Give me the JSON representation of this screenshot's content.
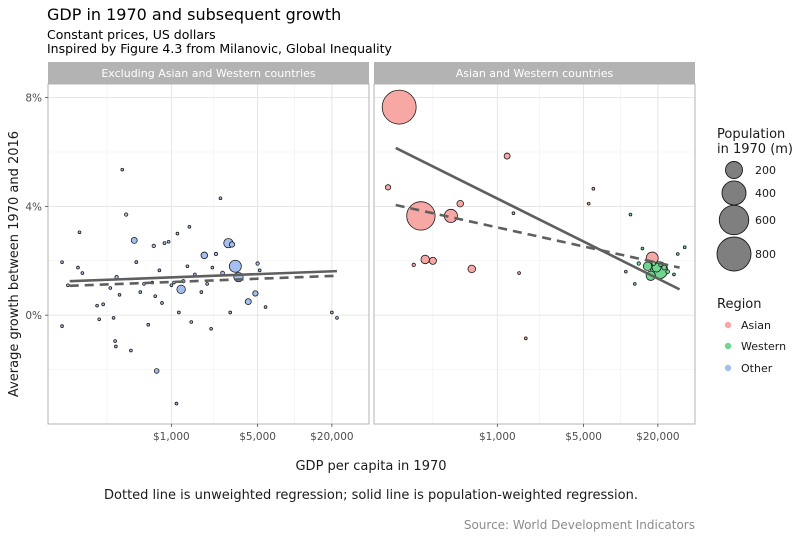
{
  "chart_data": {
    "type": "scatter",
    "title": "GDP in 1970 and subsequent growth",
    "subtitle_lines": [
      "Constant prices, US dollars",
      "Inspired by Figure 4.3 from Milanovic, Global Inequality"
    ],
    "xlabel": "GDP per capita in 1970",
    "ylabel": "Average growth between 1970 and 2016",
    "x_scale": "log10",
    "xlim": [
      100,
      40000
    ],
    "ylim": [
      -0.04,
      0.085
    ],
    "x_ticks": [
      {
        "value": 1000,
        "label": "$1,000"
      },
      {
        "value": 5000,
        "label": "$5,000"
      },
      {
        "value": 20000,
        "label": "$20,000"
      }
    ],
    "y_ticks": [
      {
        "value": 0.08,
        "label": "8%"
      },
      {
        "value": 0.04,
        "label": "4%"
      },
      {
        "value": 0.0,
        "label": "0%"
      }
    ],
    "grid": true,
    "size_legend": {
      "title_lines": [
        "Population",
        "in 1970 (m)"
      ],
      "entries": [
        {
          "value": 200,
          "label": "200"
        },
        {
          "value": 400,
          "label": "400"
        },
        {
          "value": 600,
          "label": "600"
        },
        {
          "value": 800,
          "label": "800"
        }
      ]
    },
    "color_legend": {
      "title": "Region",
      "entries": [
        {
          "name": "Asian",
          "color": "#F8A8A4"
        },
        {
          "name": "Western",
          "color": "#6FD68F"
        },
        {
          "name": "Other",
          "color": "#A3BFF0"
        }
      ]
    },
    "caption": "Dotted line is unweighted regression; solid line is population-weighted regression.",
    "source": "Source: World Development Indicators",
    "panels": [
      {
        "strip": "Excluding Asian and Western countries",
        "weighted_line": {
          "x": [
            150,
            22000
          ],
          "y": [
            0.0125,
            0.0162
          ]
        },
        "unweighted_line": {
          "x": [
            150,
            22000
          ],
          "y": [
            0.0108,
            0.0145
          ]
        },
        "points": [
          {
            "x": 130,
            "y": 0.0195,
            "pop": 5,
            "region": "Other"
          },
          {
            "x": 130,
            "y": -0.004,
            "pop": 5,
            "region": "Other"
          },
          {
            "x": 145,
            "y": 0.011,
            "pop": 4,
            "region": "Other"
          },
          {
            "x": 175,
            "y": 0.0175,
            "pop": 4,
            "region": "Other"
          },
          {
            "x": 180,
            "y": 0.0305,
            "pop": 3,
            "region": "Other"
          },
          {
            "x": 190,
            "y": 0.0155,
            "pop": 4,
            "region": "Other"
          },
          {
            "x": 250,
            "y": 0.0035,
            "pop": 3,
            "region": "Other"
          },
          {
            "x": 260,
            "y": -0.0015,
            "pop": 4,
            "region": "Other"
          },
          {
            "x": 280,
            "y": 0.004,
            "pop": 3,
            "region": "Other"
          },
          {
            "x": 320,
            "y": 0.01,
            "pop": 5,
            "region": "Other"
          },
          {
            "x": 340,
            "y": -0.001,
            "pop": 4,
            "region": "Other"
          },
          {
            "x": 350,
            "y": -0.0095,
            "pop": 4,
            "region": "Other"
          },
          {
            "x": 355,
            "y": -0.0115,
            "pop": 3,
            "region": "Other"
          },
          {
            "x": 360,
            "y": 0.014,
            "pop": 8,
            "region": "Other"
          },
          {
            "x": 380,
            "y": 0.0075,
            "pop": 4,
            "region": "Other"
          },
          {
            "x": 400,
            "y": 0.0535,
            "pop": 3,
            "region": "Other"
          },
          {
            "x": 430,
            "y": 0.037,
            "pop": 8,
            "region": "Other"
          },
          {
            "x": 470,
            "y": -0.013,
            "pop": 5,
            "region": "Other"
          },
          {
            "x": 500,
            "y": 0.0275,
            "pop": 25,
            "region": "Other"
          },
          {
            "x": 520,
            "y": 0.0195,
            "pop": 6,
            "region": "Other"
          },
          {
            "x": 560,
            "y": 0.0085,
            "pop": 4,
            "region": "Other"
          },
          {
            "x": 600,
            "y": 0.0115,
            "pop": 5,
            "region": "Other"
          },
          {
            "x": 650,
            "y": -0.0035,
            "pop": 4,
            "region": "Other"
          },
          {
            "x": 700,
            "y": 0.012,
            "pop": 4,
            "region": "Other"
          },
          {
            "x": 720,
            "y": 0.0255,
            "pop": 8,
            "region": "Other"
          },
          {
            "x": 740,
            "y": 0.007,
            "pop": 5,
            "region": "Other"
          },
          {
            "x": 760,
            "y": -0.0205,
            "pop": 15,
            "region": "Other"
          },
          {
            "x": 800,
            "y": 0.0165,
            "pop": 4,
            "region": "Other"
          },
          {
            "x": 840,
            "y": 0.0045,
            "pop": 4,
            "region": "Other"
          },
          {
            "x": 880,
            "y": 0.0265,
            "pop": 6,
            "region": "Other"
          },
          {
            "x": 950,
            "y": 0.027,
            "pop": 5,
            "region": "Other"
          },
          {
            "x": 1000,
            "y": 0.011,
            "pop": 5,
            "region": "Other"
          },
          {
            "x": 1050,
            "y": 0.012,
            "pop": 4,
            "region": "Other"
          },
          {
            "x": 1100,
            "y": -0.0325,
            "pop": 3,
            "region": "Other"
          },
          {
            "x": 1120,
            "y": 0.03,
            "pop": 4,
            "region": "Other"
          },
          {
            "x": 1150,
            "y": 0.001,
            "pop": 5,
            "region": "Other"
          },
          {
            "x": 1200,
            "y": 0.0095,
            "pop": 50,
            "region": "Other"
          },
          {
            "x": 1250,
            "y": 0.0125,
            "pop": 8,
            "region": "Other"
          },
          {
            "x": 1350,
            "y": 0.018,
            "pop": 5,
            "region": "Other"
          },
          {
            "x": 1400,
            "y": 0.0325,
            "pop": 4,
            "region": "Other"
          },
          {
            "x": 1450,
            "y": -0.0025,
            "pop": 4,
            "region": "Other"
          },
          {
            "x": 1550,
            "y": 0.015,
            "pop": 4,
            "region": "Other"
          },
          {
            "x": 1750,
            "y": 0.0085,
            "pop": 3,
            "region": "Other"
          },
          {
            "x": 1850,
            "y": 0.022,
            "pop": 30,
            "region": "Other"
          },
          {
            "x": 1950,
            "y": 0.0115,
            "pop": 4,
            "region": "Other"
          },
          {
            "x": 2100,
            "y": -0.005,
            "pop": 4,
            "region": "Other"
          },
          {
            "x": 2150,
            "y": 0.0175,
            "pop": 5,
            "region": "Other"
          },
          {
            "x": 2300,
            "y": 0.0225,
            "pop": 8,
            "region": "Other"
          },
          {
            "x": 2500,
            "y": 0.043,
            "pop": 3,
            "region": "Other"
          },
          {
            "x": 2600,
            "y": 0.0155,
            "pop": 10,
            "region": "Other"
          },
          {
            "x": 2900,
            "y": 0.0265,
            "pop": 60,
            "region": "Other"
          },
          {
            "x": 3000,
            "y": 0.001,
            "pop": 4,
            "region": "Other"
          },
          {
            "x": 3100,
            "y": 0.026,
            "pop": 20,
            "region": "Other"
          },
          {
            "x": 3300,
            "y": 0.018,
            "pop": 100,
            "region": "Other"
          },
          {
            "x": 3500,
            "y": 0.014,
            "pop": 60,
            "region": "Other"
          },
          {
            "x": 4200,
            "y": 0.005,
            "pop": 25,
            "region": "Other"
          },
          {
            "x": 4800,
            "y": 0.008,
            "pop": 20,
            "region": "Other"
          },
          {
            "x": 5000,
            "y": 0.019,
            "pop": 8,
            "region": "Other"
          },
          {
            "x": 5200,
            "y": 0.0165,
            "pop": 4,
            "region": "Other"
          },
          {
            "x": 5800,
            "y": 0.003,
            "pop": 3,
            "region": "Other"
          },
          {
            "x": 20000,
            "y": 0.001,
            "pop": 3,
            "region": "Other"
          },
          {
            "x": 22000,
            "y": -0.001,
            "pop": 5,
            "region": "Other"
          }
        ]
      },
      {
        "strip": "Asian and Western countries",
        "weighted_line": {
          "x": [
            150,
            30000
          ],
          "y": [
            0.0615,
            0.0095
          ]
        },
        "unweighted_line": {
          "x": [
            150,
            30000
          ],
          "y": [
            0.0405,
            0.0175
          ]
        },
        "points": [
          {
            "x": 130,
            "y": 0.047,
            "pop": 20,
            "region": "Asian"
          },
          {
            "x": 160,
            "y": 0.0765,
            "pop": 800,
            "region": "Asian"
          },
          {
            "x": 210,
            "y": 0.0185,
            "pop": 8,
            "region": "Asian"
          },
          {
            "x": 240,
            "y": 0.0365,
            "pop": 560,
            "region": "Asian"
          },
          {
            "x": 260,
            "y": 0.0205,
            "pop": 50,
            "region": "Asian"
          },
          {
            "x": 300,
            "y": 0.02,
            "pop": 35,
            "region": "Asian"
          },
          {
            "x": 420,
            "y": 0.0365,
            "pop": 120,
            "region": "Asian"
          },
          {
            "x": 500,
            "y": 0.041,
            "pop": 30,
            "region": "Asian"
          },
          {
            "x": 620,
            "y": 0.017,
            "pop": 40,
            "region": "Asian"
          },
          {
            "x": 1200,
            "y": 0.0585,
            "pop": 25,
            "region": "Asian"
          },
          {
            "x": 1350,
            "y": 0.0375,
            "pop": 4,
            "region": "Asian"
          },
          {
            "x": 1500,
            "y": 0.0155,
            "pop": 3,
            "region": "Asian"
          },
          {
            "x": 1700,
            "y": -0.0085,
            "pop": 3,
            "region": "Asian"
          },
          {
            "x": 5500,
            "y": 0.041,
            "pop": 3,
            "region": "Asian"
          },
          {
            "x": 6000,
            "y": 0.0465,
            "pop": 3,
            "region": "Asian"
          },
          {
            "x": 11000,
            "y": 0.016,
            "pop": 5,
            "region": "Western"
          },
          {
            "x": 12000,
            "y": 0.037,
            "pop": 3,
            "region": "Western"
          },
          {
            "x": 13000,
            "y": 0.0115,
            "pop": 5,
            "region": "Western"
          },
          {
            "x": 14000,
            "y": 0.019,
            "pop": 8,
            "region": "Western"
          },
          {
            "x": 15000,
            "y": 0.0245,
            "pop": 3,
            "region": "Western"
          },
          {
            "x": 16500,
            "y": 0.018,
            "pop": 50,
            "region": "Western"
          },
          {
            "x": 17500,
            "y": 0.0145,
            "pop": 60,
            "region": "Western"
          },
          {
            "x": 18000,
            "y": 0.021,
            "pop": 100,
            "region": "Asian"
          },
          {
            "x": 18500,
            "y": 0.019,
            "pop": 10,
            "region": "Western"
          },
          {
            "x": 19500,
            "y": 0.0175,
            "pop": 55,
            "region": "Western"
          },
          {
            "x": 20500,
            "y": 0.0165,
            "pop": 200,
            "region": "Western"
          },
          {
            "x": 21000,
            "y": 0.0185,
            "pop": 8,
            "region": "Western"
          },
          {
            "x": 22500,
            "y": 0.0175,
            "pop": 15,
            "region": "Western"
          },
          {
            "x": 24000,
            "y": 0.016,
            "pop": 10,
            "region": "Western"
          },
          {
            "x": 27000,
            "y": 0.015,
            "pop": 4,
            "region": "Western"
          },
          {
            "x": 29000,
            "y": 0.0225,
            "pop": 4,
            "region": "Western"
          },
          {
            "x": 33000,
            "y": 0.025,
            "pop": 3,
            "region": "Western"
          }
        ]
      }
    ]
  }
}
